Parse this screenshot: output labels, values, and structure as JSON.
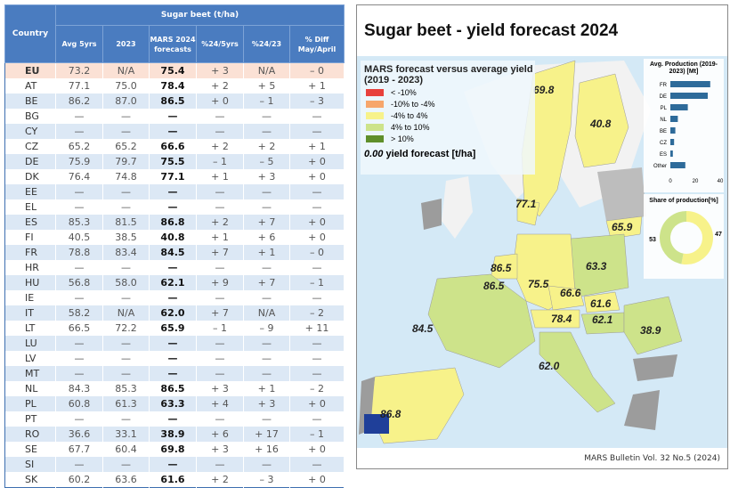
{
  "table": {
    "group_header": "Sugar beet (t/ha)",
    "columns": [
      "Country",
      "Avg 5yrs",
      "2023",
      "MARS 2024 forecasts",
      "%24/5yrs",
      "%24/23",
      "% Diff May/April"
    ],
    "rows": [
      [
        "EU",
        "73.2",
        "N/A",
        "75.4",
        "+ 3",
        "N/A",
        "– 0"
      ],
      [
        "AT",
        "77.1",
        "75.0",
        "78.4",
        "+ 2",
        "+ 5",
        "+ 1"
      ],
      [
        "BE",
        "86.2",
        "87.0",
        "86.5",
        "+ 0",
        "– 1",
        "– 3"
      ],
      [
        "BG",
        "—",
        "—",
        "—",
        "—",
        "—",
        "—"
      ],
      [
        "CY",
        "—",
        "—",
        "—",
        "—",
        "—",
        "—"
      ],
      [
        "CZ",
        "65.2",
        "65.2",
        "66.6",
        "+ 2",
        "+ 2",
        "+ 1"
      ],
      [
        "DE",
        "75.9",
        "79.7",
        "75.5",
        "– 1",
        "– 5",
        "+ 0"
      ],
      [
        "DK",
        "76.4",
        "74.8",
        "77.1",
        "+ 1",
        "+ 3",
        "+ 0"
      ],
      [
        "EE",
        "—",
        "—",
        "—",
        "—",
        "—",
        "—"
      ],
      [
        "EL",
        "—",
        "—",
        "—",
        "—",
        "—",
        "—"
      ],
      [
        "ES",
        "85.3",
        "81.5",
        "86.8",
        "+ 2",
        "+ 7",
        "+ 0"
      ],
      [
        "FI",
        "40.5",
        "38.5",
        "40.8",
        "+ 1",
        "+ 6",
        "+ 0"
      ],
      [
        "FR",
        "78.8",
        "83.4",
        "84.5",
        "+ 7",
        "+ 1",
        "– 0"
      ],
      [
        "HR",
        "—",
        "—",
        "—",
        "—",
        "—",
        "—"
      ],
      [
        "HU",
        "56.8",
        "58.0",
        "62.1",
        "+ 9",
        "+ 7",
        "– 1"
      ],
      [
        "IE",
        "—",
        "—",
        "—",
        "—",
        "—",
        "—"
      ],
      [
        "IT",
        "58.2",
        "N/A",
        "62.0",
        "+ 7",
        "N/A",
        "– 2"
      ],
      [
        "LT",
        "66.5",
        "72.2",
        "65.9",
        "– 1",
        "– 9",
        "+ 11"
      ],
      [
        "LU",
        "—",
        "—",
        "—",
        "—",
        "—",
        "—"
      ],
      [
        "LV",
        "—",
        "—",
        "—",
        "—",
        "—",
        "—"
      ],
      [
        "MT",
        "—",
        "—",
        "—",
        "—",
        "—",
        "—"
      ],
      [
        "NL",
        "84.3",
        "85.3",
        "86.5",
        "+ 3",
        "+ 1",
        "– 2"
      ],
      [
        "PL",
        "60.8",
        "61.3",
        "63.3",
        "+ 4",
        "+ 3",
        "+ 0"
      ],
      [
        "PT",
        "—",
        "—",
        "—",
        "—",
        "—",
        "—"
      ],
      [
        "RO",
        "36.6",
        "33.1",
        "38.9",
        "+ 6",
        "+ 17",
        "– 1"
      ],
      [
        "SE",
        "67.7",
        "60.4",
        "69.8",
        "+ 3",
        "+ 16",
        "+ 0"
      ],
      [
        "SI",
        "—",
        "—",
        "—",
        "—",
        "—",
        "—"
      ],
      [
        "SK",
        "60.2",
        "63.6",
        "61.6",
        "+ 2",
        "– 3",
        "+ 0"
      ]
    ]
  },
  "map": {
    "title": "Sugar beet - yield forecast 2024",
    "legend_title": "MARS forecast versus average yield (2019 - 2023)",
    "legend": [
      {
        "label": "< -10%",
        "color": "#e8413c"
      },
      {
        "label": "-10% to -4%",
        "color": "#f7a66b"
      },
      {
        "label": "-4% to 4%",
        "color": "#f7f28a"
      },
      {
        "label": "4% to 10%",
        "color": "#cde38a"
      },
      {
        "label": "> 10%",
        "color": "#5f8f2a"
      }
    ],
    "value_legend_sample": "0.00",
    "value_legend_text": "yield forecast [t/ha]",
    "labels": [
      {
        "country": "SE",
        "value": "69.8"
      },
      {
        "country": "FI",
        "value": "40.8"
      },
      {
        "country": "DK",
        "value": "77.1"
      },
      {
        "country": "LT",
        "value": "65.9"
      },
      {
        "country": "PL",
        "value": "63.3"
      },
      {
        "country": "NL",
        "value": "86.5"
      },
      {
        "country": "BE",
        "value": "86.5"
      },
      {
        "country": "DE",
        "value": "75.5"
      },
      {
        "country": "CZ",
        "value": "66.6"
      },
      {
        "country": "SK",
        "value": "61.6"
      },
      {
        "country": "HU",
        "value": "62.1"
      },
      {
        "country": "AT",
        "value": "78.4"
      },
      {
        "country": "RO",
        "value": "38.9"
      },
      {
        "country": "FR",
        "value": "84.5"
      },
      {
        "country": "IT",
        "value": "62.0"
      },
      {
        "country": "ES",
        "value": "86.8"
      }
    ],
    "footer": "MARS Bulletin Vol. 32 No.5 (2024)"
  },
  "chart_data": [
    {
      "type": "bar",
      "title": "Avg. Production (2019-2023) [Mt]",
      "categories": [
        "FR",
        "DE",
        "PL",
        "NL",
        "BE",
        "CZ",
        "ES",
        "Other"
      ],
      "values": [
        32,
        30,
        14,
        6,
        4,
        3,
        2,
        12
      ],
      "xlim": [
        0,
        40
      ],
      "ticks": [
        "0",
        "20",
        "40"
      ],
      "color": "#2e6b9a"
    },
    {
      "type": "pie",
      "title": "Share of production[%]",
      "values": [
        53,
        47
      ],
      "labels": [
        "53",
        "47"
      ],
      "colors": [
        "#f7f28a",
        "#cde38a"
      ]
    }
  ]
}
